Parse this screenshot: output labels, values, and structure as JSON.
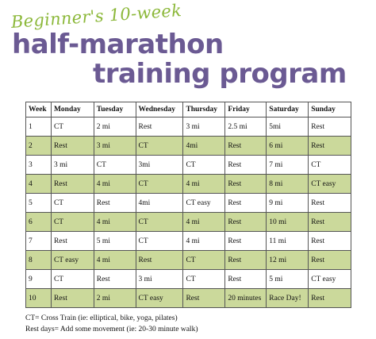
{
  "header": {
    "script_title": "Beginner's 10-week",
    "title_line1": "half-marathon",
    "title_line2": "training program"
  },
  "colors": {
    "accent_green": "#8cb83a",
    "title_purple": "#6b5a93",
    "row_shade": "#cbd99b"
  },
  "table": {
    "columns": [
      "Week",
      "Monday",
      "Tuesday",
      "Wednesday",
      "Thursday",
      "Friday",
      "Saturday",
      "Sunday"
    ],
    "rows": [
      [
        "1",
        "CT",
        "2 mi",
        "Rest",
        "3 mi",
        "2.5 mi",
        "5mi",
        "Rest"
      ],
      [
        "2",
        "Rest",
        "3 mi",
        "CT",
        "4mi",
        "Rest",
        "6 mi",
        "Rest"
      ],
      [
        "3",
        "3 mi",
        "CT",
        "3mi",
        "CT",
        "Rest",
        "7 mi",
        "CT"
      ],
      [
        "4",
        "Rest",
        "4 mi",
        "CT",
        "4 mi",
        "Rest",
        "8 mi",
        "CT easy"
      ],
      [
        "5",
        "CT",
        "Rest",
        "4mi",
        "CT easy",
        "Rest",
        "9 mi",
        "Rest"
      ],
      [
        "6",
        "CT",
        "4 mi",
        "CT",
        "4 mi",
        "Rest",
        "10 mi",
        "Rest"
      ],
      [
        "7",
        "Rest",
        "5 mi",
        "CT",
        "4 mi",
        "Rest",
        "11 mi",
        "Rest"
      ],
      [
        "8",
        "CT easy",
        "4 mi",
        "Rest",
        "CT",
        "Rest",
        "12 mi",
        "Rest"
      ],
      [
        "9",
        "CT",
        "Rest",
        "3 mi",
        "CT",
        "Rest",
        "5 mi",
        "CT easy"
      ],
      [
        "10",
        "Rest",
        "2 mi",
        "CT easy",
        "Rest",
        "20 minutes",
        "Race Day!",
        "Rest"
      ]
    ]
  },
  "footnotes": {
    "ct": "CT= Cross Train (ie: elliptical, bike, yoga, pilates)",
    "rest": "Rest days= Add some movement (ie: 20-30 minute walk)"
  }
}
